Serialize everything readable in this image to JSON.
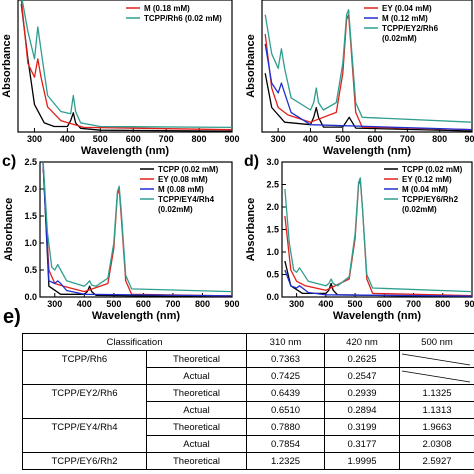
{
  "chart_data": [
    {
      "panel_label": "",
      "type": "line",
      "ylabel": "Absorbance",
      "xlabel": "Wavelength (nm)",
      "xlim": [
        250,
        900
      ],
      "xticks": [
        "300",
        "400",
        "500",
        "600",
        "700",
        "800",
        "900"
      ],
      "yticks": [],
      "legend": [
        "M (0.18 mM)",
        "TCPP/Rh6 (0.02 mM)"
      ],
      "legend_title_extra": "",
      "series": [
        {
          "name": "TCPP",
          "color": "#000000",
          "x": [
            260,
            280,
            300,
            330,
            360,
            400,
            410,
            418,
            425,
            440,
            500,
            900
          ],
          "y": [
            2.8,
            1.6,
            0.6,
            0.2,
            0.12,
            0.12,
            0.25,
            0.42,
            0.2,
            0.08,
            0.04,
            0.02
          ]
        },
        {
          "name": "M (0.18 mM)",
          "color": "#e0201a",
          "x": [
            260,
            280,
            300,
            310,
            320,
            340,
            380,
            450,
            900
          ],
          "y": [
            2.9,
            1.5,
            1.2,
            1.6,
            1.2,
            0.55,
            0.25,
            0.1,
            0.05
          ]
        },
        {
          "name": "TCPP/Rh6 (0.02 mM)",
          "color": "#2f9e8f",
          "x": [
            260,
            280,
            300,
            310,
            320,
            340,
            380,
            410,
            418,
            425,
            440,
            500,
            900
          ],
          "y": [
            3.0,
            2.2,
            1.6,
            2.3,
            1.8,
            0.8,
            0.45,
            0.4,
            0.8,
            0.45,
            0.2,
            0.12,
            0.1
          ]
        }
      ]
    },
    {
      "panel_label": "",
      "type": "line",
      "ylabel": "Absorbance",
      "xlabel": "Wavelength (nm)",
      "xlim": [
        250,
        900
      ],
      "xticks": [
        "300",
        "400",
        "500",
        "600",
        "700",
        "800",
        "900"
      ],
      "yticks": [],
      "legend": [
        "EY (0.04 mM)",
        "M (0.12 mM)",
        "TCPP/EY2/Rh6"
      ],
      "legend_title_extra": "(0.02mM)",
      "series": [
        {
          "name": "TCPP",
          "color": "#000000",
          "x": [
            260,
            280,
            320,
            400,
            410,
            418,
            425,
            440,
            500,
            520,
            540,
            900
          ],
          "y": [
            1.2,
            0.5,
            0.2,
            0.15,
            0.3,
            0.5,
            0.3,
            0.1,
            0.1,
            0.3,
            0.08,
            0.02
          ]
        },
        {
          "name": "EY (0.04 mM)",
          "color": "#e0201a",
          "x": [
            260,
            280,
            300,
            330,
            400,
            480,
            500,
            512,
            518,
            525,
            540,
            560,
            900
          ],
          "y": [
            2.0,
            0.9,
            0.5,
            0.35,
            0.2,
            0.4,
            1.2,
            2.3,
            2.4,
            1.8,
            0.4,
            0.1,
            0.05
          ]
        },
        {
          "name": "M (0.12 mM)",
          "color": "#1f2fcf",
          "x": [
            260,
            280,
            300,
            310,
            320,
            340,
            400,
            900
          ],
          "y": [
            1.8,
            1.0,
            0.8,
            1.0,
            0.8,
            0.4,
            0.15,
            0.05
          ]
        },
        {
          "name": "TCPP/EY2/Rh6",
          "color": "#2f9e8f",
          "x": [
            260,
            280,
            300,
            310,
            320,
            340,
            400,
            410,
            418,
            425,
            440,
            480,
            500,
            512,
            518,
            525,
            540,
            560,
            900
          ],
          "y": [
            2.4,
            1.6,
            1.3,
            1.7,
            1.3,
            0.7,
            0.45,
            0.6,
            0.9,
            0.6,
            0.45,
            0.6,
            1.4,
            2.4,
            2.5,
            1.9,
            0.6,
            0.3,
            0.2
          ]
        }
      ]
    },
    {
      "panel_label": "c)",
      "type": "line",
      "ylabel": "Absorbance",
      "xlabel": "Wavelength (nm)",
      "xlim": [
        250,
        900
      ],
      "ylim": [
        0,
        2.5
      ],
      "xticks": [
        "300",
        "400",
        "500",
        "600",
        "700",
        "800",
        "900"
      ],
      "yticks": [
        "0.0",
        "0.5",
        "1.0",
        "1.5",
        "2.0",
        "2.5"
      ],
      "legend": [
        "TCPP (0.02 mM)",
        "EY (0.08 mM)",
        "M (0.08 mM)",
        "TCPP/EY4/Rh4"
      ],
      "legend_title_extra": "(0.02mM)",
      "series": [
        {
          "name": "TCPP (0.02 mM)",
          "color": "#000000",
          "x": [
            260,
            280,
            320,
            400,
            410,
            418,
            425,
            440,
            900
          ],
          "y": [
            2.5,
            0.2,
            0.05,
            0.05,
            0.1,
            0.2,
            0.1,
            0.03,
            0.0
          ]
        },
        {
          "name": "EY (0.08 mM)",
          "color": "#e0201a",
          "x": [
            260,
            280,
            300,
            330,
            400,
            480,
            500,
            512,
            518,
            525,
            540,
            560,
            900
          ],
          "y": [
            2.5,
            0.5,
            0.25,
            0.2,
            0.1,
            0.25,
            0.9,
            1.9,
            2.0,
            1.5,
            0.3,
            0.05,
            0.02
          ]
        },
        {
          "name": "M (0.08 mM)",
          "color": "#1f2fcf",
          "x": [
            260,
            280,
            300,
            310,
            320,
            340,
            400,
            900
          ],
          "y": [
            2.5,
            0.3,
            0.25,
            0.3,
            0.25,
            0.12,
            0.05,
            0.02
          ]
        },
        {
          "name": "TCPP/EY4/Rh4",
          "color": "#2f9e8f",
          "x": [
            260,
            275,
            290,
            300,
            310,
            320,
            340,
            400,
            410,
            418,
            425,
            440,
            480,
            500,
            512,
            518,
            525,
            540,
            560,
            900
          ],
          "y": [
            2.55,
            1.2,
            0.55,
            0.5,
            0.6,
            0.5,
            0.3,
            0.2,
            0.25,
            0.3,
            0.22,
            0.2,
            0.35,
            1.0,
            1.95,
            2.05,
            1.6,
            0.4,
            0.15,
            0.1
          ]
        }
      ]
    },
    {
      "panel_label": "d)",
      "type": "line",
      "ylabel": "Absorbance",
      "xlabel": "Wavelength (nm)",
      "xlim": [
        250,
        900
      ],
      "ylim": [
        0,
        3.0
      ],
      "xticks": [
        "300",
        "400",
        "500",
        "600",
        "700",
        "800",
        "900"
      ],
      "yticks": [
        "0.0",
        "0.5",
        "1.0",
        "1.5",
        "2.0",
        "2.5",
        "3.0"
      ],
      "legend": [
        "TCPP (0.02 mM)",
        "EY (0.12 mM)",
        "M (0.04 mM)",
        "TCPP/EY6/Rh2"
      ],
      "legend_title_extra": "(0.02mM)",
      "series": [
        {
          "name": "TCPP (0.02 mM)",
          "color": "#000000",
          "x": [
            260,
            280,
            320,
            400,
            410,
            418,
            425,
            440,
            900
          ],
          "y": [
            0.8,
            0.25,
            0.08,
            0.08,
            0.15,
            0.3,
            0.15,
            0.05,
            0.0
          ]
        },
        {
          "name": "EY (0.12 mM)",
          "color": "#e0201a",
          "x": [
            260,
            280,
            300,
            330,
            400,
            480,
            500,
            512,
            518,
            525,
            540,
            560,
            900
          ],
          "y": [
            1.8,
            0.6,
            0.35,
            0.25,
            0.15,
            0.4,
            1.3,
            2.5,
            2.6,
            2.0,
            0.4,
            0.08,
            0.03
          ]
        },
        {
          "name": "M (0.04 mM)",
          "color": "#1f2fcf",
          "x": [
            260,
            280,
            300,
            310,
            320,
            340,
            400,
            900
          ],
          "y": [
            0.6,
            0.25,
            0.2,
            0.25,
            0.2,
            0.1,
            0.05,
            0.02
          ]
        },
        {
          "name": "TCPP/EY6/Rh2",
          "color": "#2f9e8f",
          "x": [
            260,
            275,
            290,
            300,
            310,
            320,
            340,
            400,
            410,
            418,
            425,
            440,
            480,
            500,
            512,
            518,
            525,
            540,
            560,
            900
          ],
          "y": [
            2.4,
            1.2,
            0.6,
            0.55,
            0.65,
            0.55,
            0.35,
            0.25,
            0.3,
            0.4,
            0.3,
            0.25,
            0.45,
            1.4,
            2.55,
            2.65,
            2.0,
            0.5,
            0.2,
            0.12
          ]
        }
      ]
    }
  ],
  "table": {
    "panel_label": "e)",
    "headers": [
      "Classification",
      "310 nm",
      "420 nm",
      "500 nm"
    ],
    "rows": [
      {
        "group": "TCPP/Rh6",
        "type": "Theoretical",
        "v310": "0.7363",
        "v420": "0.2625",
        "v500": ""
      },
      {
        "group": "",
        "type": "Actual",
        "v310": "0.7425",
        "v420": "0.2547",
        "v500": ""
      },
      {
        "group": "TCPP/EY2/Rh6",
        "type": "Theoretical",
        "v310": "0.6439",
        "v420": "0.2939",
        "v500": "1.1325"
      },
      {
        "group": "",
        "type": "Actual",
        "v310": "0.6510",
        "v420": "0.2894",
        "v500": "1.1313"
      },
      {
        "group": "TCPP/EY4/Rh4",
        "type": "Theoretical",
        "v310": "0.7880",
        "v420": "0.3199",
        "v500": "1.9663"
      },
      {
        "group": "",
        "type": "Actual",
        "v310": "0.7854",
        "v420": "0.3177",
        "v500": "2.0308"
      },
      {
        "group": "TCPP/EY6/Rh2",
        "type": "Theoretical",
        "v310": "1.2325",
        "v420": "1.9995",
        "v500": "2.5927"
      }
    ]
  }
}
